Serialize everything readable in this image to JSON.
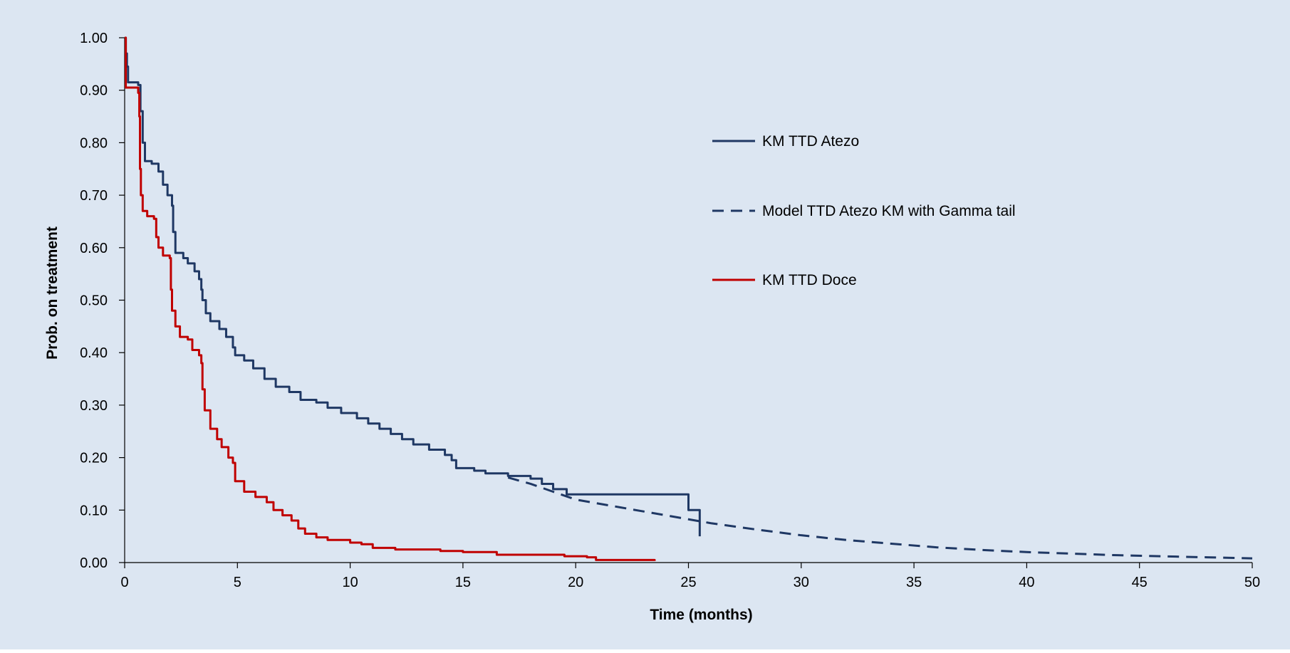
{
  "colors": {
    "background": "#dce6f2",
    "axis": "#000000",
    "atezo": "#1f3864",
    "doce": "#c00000",
    "text": "#000000"
  },
  "chart_data": {
    "type": "line",
    "xlabel": "Time (months)",
    "ylabel": "Prob. on treatment",
    "xlim": [
      0,
      50
    ],
    "ylim": [
      0,
      1
    ],
    "x_ticks": [
      0,
      5,
      10,
      15,
      20,
      25,
      30,
      35,
      40,
      45,
      50
    ],
    "x_tick_labels": [
      "0",
      "5",
      "10",
      "15",
      "20",
      "25",
      "30",
      "35",
      "40",
      "45",
      "50"
    ],
    "y_ticks": [
      0,
      0.1,
      0.2,
      0.3,
      0.4,
      0.5,
      0.6,
      0.7,
      0.8,
      0.9,
      1.0
    ],
    "y_tick_labels": [
      "0.00",
      "0.10",
      "0.20",
      "0.30",
      "0.40",
      "0.50",
      "0.60",
      "0.70",
      "0.80",
      "0.90",
      "1.00"
    ],
    "grid": false,
    "legend_position": "right",
    "series": [
      {
        "name": "KM TTD Atezo",
        "style": "solid-step",
        "color": "#1f3864",
        "points": [
          [
            0,
            1.0
          ],
          [
            0.05,
            0.97
          ],
          [
            0.1,
            0.945
          ],
          [
            0.15,
            0.915
          ],
          [
            0.6,
            0.91
          ],
          [
            0.7,
            0.86
          ],
          [
            0.8,
            0.8
          ],
          [
            0.9,
            0.765
          ],
          [
            1.2,
            0.76
          ],
          [
            1.5,
            0.745
          ],
          [
            1.7,
            0.72
          ],
          [
            1.9,
            0.7
          ],
          [
            2.1,
            0.68
          ],
          [
            2.15,
            0.63
          ],
          [
            2.25,
            0.59
          ],
          [
            2.6,
            0.58
          ],
          [
            2.8,
            0.57
          ],
          [
            3.1,
            0.555
          ],
          [
            3.3,
            0.54
          ],
          [
            3.4,
            0.52
          ],
          [
            3.45,
            0.5
          ],
          [
            3.6,
            0.475
          ],
          [
            3.8,
            0.46
          ],
          [
            4.2,
            0.445
          ],
          [
            4.5,
            0.43
          ],
          [
            4.8,
            0.41
          ],
          [
            4.9,
            0.395
          ],
          [
            5.3,
            0.385
          ],
          [
            5.7,
            0.37
          ],
          [
            6.2,
            0.35
          ],
          [
            6.7,
            0.335
          ],
          [
            7.3,
            0.325
          ],
          [
            7.8,
            0.31
          ],
          [
            8.5,
            0.305
          ],
          [
            9.0,
            0.295
          ],
          [
            9.6,
            0.285
          ],
          [
            10.3,
            0.275
          ],
          [
            10.8,
            0.265
          ],
          [
            11.3,
            0.255
          ],
          [
            11.8,
            0.245
          ],
          [
            12.3,
            0.235
          ],
          [
            12.8,
            0.225
          ],
          [
            13.5,
            0.215
          ],
          [
            14.2,
            0.205
          ],
          [
            14.5,
            0.195
          ],
          [
            14.7,
            0.18
          ],
          [
            15.5,
            0.175
          ],
          [
            16.0,
            0.17
          ],
          [
            17.0,
            0.165
          ],
          [
            18.0,
            0.16
          ],
          [
            18.5,
            0.15
          ],
          [
            19.0,
            0.14
          ],
          [
            19.6,
            0.13
          ],
          [
            25.0,
            0.1
          ],
          [
            25.5,
            0.05
          ]
        ]
      },
      {
        "name": "Model TTD Atezo KM with Gamma tail",
        "style": "dashed",
        "color": "#1f3864",
        "points": [
          [
            17.0,
            0.162
          ],
          [
            18,
            0.15
          ],
          [
            19,
            0.135
          ],
          [
            20,
            0.12
          ],
          [
            22,
            0.105
          ],
          [
            24,
            0.09
          ],
          [
            26,
            0.075
          ],
          [
            28,
            0.063
          ],
          [
            30,
            0.052
          ],
          [
            32,
            0.043
          ],
          [
            34,
            0.036
          ],
          [
            36,
            0.029
          ],
          [
            38,
            0.024
          ],
          [
            40,
            0.02
          ],
          [
            42,
            0.017
          ],
          [
            44,
            0.014
          ],
          [
            46,
            0.012
          ],
          [
            48,
            0.01
          ],
          [
            50,
            0.008
          ]
        ]
      },
      {
        "name": "KM TTD Doce",
        "style": "solid-step",
        "color": "#c00000",
        "points": [
          [
            0,
            1.0
          ],
          [
            0.05,
            0.905
          ],
          [
            0.6,
            0.895
          ],
          [
            0.65,
            0.85
          ],
          [
            0.68,
            0.75
          ],
          [
            0.72,
            0.7
          ],
          [
            0.8,
            0.67
          ],
          [
            1.0,
            0.66
          ],
          [
            1.3,
            0.655
          ],
          [
            1.4,
            0.62
          ],
          [
            1.5,
            0.6
          ],
          [
            1.7,
            0.585
          ],
          [
            2.0,
            0.58
          ],
          [
            2.05,
            0.52
          ],
          [
            2.1,
            0.48
          ],
          [
            2.25,
            0.45
          ],
          [
            2.45,
            0.43
          ],
          [
            2.8,
            0.425
          ],
          [
            3.0,
            0.405
          ],
          [
            3.3,
            0.395
          ],
          [
            3.4,
            0.38
          ],
          [
            3.45,
            0.33
          ],
          [
            3.55,
            0.29
          ],
          [
            3.8,
            0.255
          ],
          [
            4.1,
            0.235
          ],
          [
            4.3,
            0.22
          ],
          [
            4.6,
            0.2
          ],
          [
            4.8,
            0.19
          ],
          [
            4.9,
            0.155
          ],
          [
            5.3,
            0.135
          ],
          [
            5.8,
            0.125
          ],
          [
            6.3,
            0.115
          ],
          [
            6.6,
            0.1
          ],
          [
            7.0,
            0.09
          ],
          [
            7.4,
            0.08
          ],
          [
            7.7,
            0.065
          ],
          [
            8.0,
            0.055
          ],
          [
            8.5,
            0.048
          ],
          [
            9.0,
            0.043
          ],
          [
            10.0,
            0.038
          ],
          [
            10.5,
            0.035
          ],
          [
            11.0,
            0.028
          ],
          [
            12.0,
            0.025
          ],
          [
            14.0,
            0.022
          ],
          [
            15.0,
            0.02
          ],
          [
            16.5,
            0.015
          ],
          [
            19.5,
            0.012
          ],
          [
            20.5,
            0.01
          ],
          [
            20.9,
            0.005
          ],
          [
            23.5,
            0.003
          ]
        ]
      }
    ]
  }
}
